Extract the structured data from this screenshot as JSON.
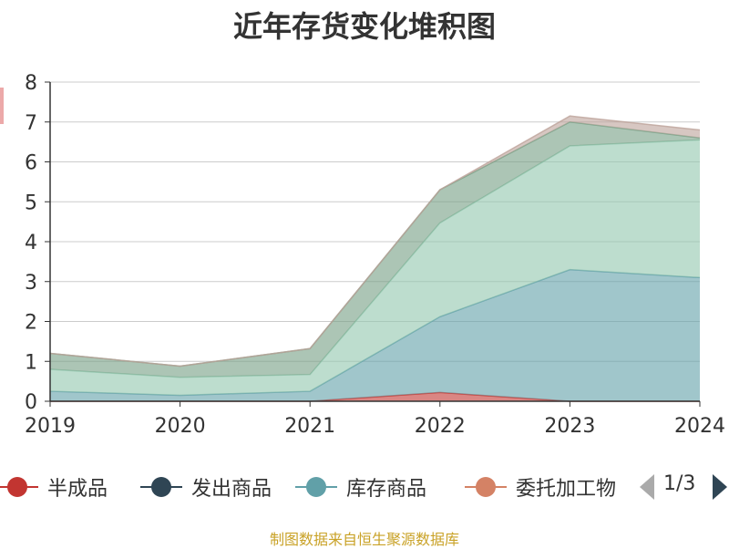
{
  "chart_data": {
    "type": "area",
    "title": "近年存货变化堆积图",
    "categories": [
      "2019",
      "2020",
      "2021",
      "2022",
      "2023",
      "2024"
    ],
    "ylim": [
      0,
      8
    ],
    "yticks": [
      "0",
      "1",
      "2",
      "3",
      "4",
      "5",
      "6",
      "7",
      "8"
    ],
    "stacked": true,
    "grid": true,
    "legend_position": "bottom",
    "series": [
      {
        "name": "半成品",
        "color": "#c23531",
        "values": [
          0,
          0,
          0,
          0.22,
          0,
          0
        ]
      },
      {
        "name": "发出商品",
        "color": "#2f4554",
        "values": [
          0,
          0,
          0,
          0,
          0,
          0
        ]
      },
      {
        "name": "库存商品",
        "color": "#61a0a8",
        "values": [
          0.25,
          0.15,
          0.25,
          1.9,
          3.3,
          3.1
        ]
      },
      {
        "name": "委托加工物资",
        "color": "#d48265",
        "values": [
          0,
          0,
          0,
          0,
          0,
          0
        ]
      },
      {
        "name": "",
        "color": "#91c7ae",
        "values": [
          0.55,
          0.45,
          0.42,
          2.35,
          3.1,
          3.45
        ]
      },
      {
        "name": "",
        "color": "#749f83",
        "values": [
          0.4,
          0.28,
          0.65,
          0.83,
          0.6,
          0.05
        ]
      },
      {
        "name": "",
        "color": "#ca8622",
        "values": [
          0,
          0,
          0,
          0,
          0,
          0
        ]
      },
      {
        "name": "",
        "color": "#bda29a",
        "values": [
          0,
          0,
          0,
          0,
          0.15,
          0.2
        ]
      }
    ]
  },
  "legend": {
    "items": [
      "半成品",
      "发出商品",
      "库存商品",
      "委托加工物"
    ],
    "pager": "1/3"
  },
  "source": "制图数据来自恒生聚源数据库"
}
